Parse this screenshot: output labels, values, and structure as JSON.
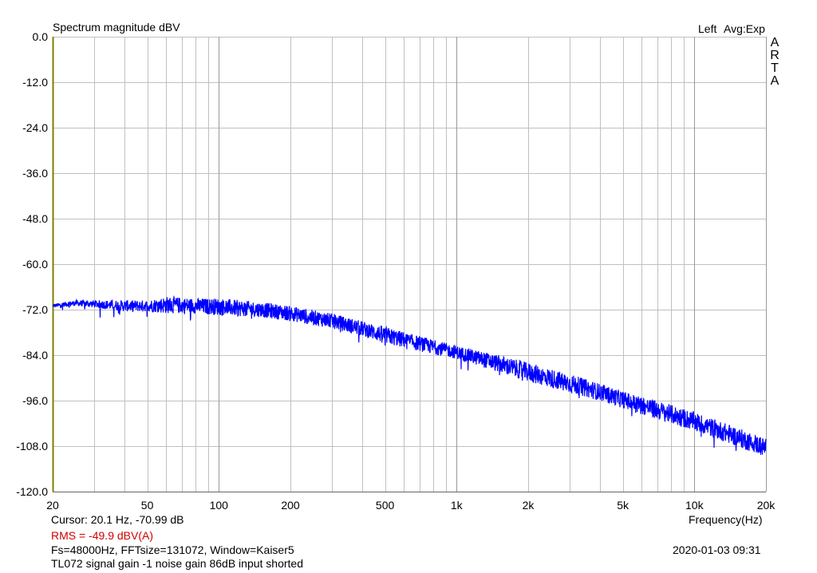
{
  "header": {
    "title": "Spectrum magnitude dBV",
    "channel": "Left",
    "avg": "Avg:Exp"
  },
  "brand_letters": [
    "A",
    "R",
    "T",
    "A"
  ],
  "footer": {
    "cursor": "Cursor:   20.1 Hz, -70.99 dB",
    "rms": "RMS =  -49.9 dBV(A)",
    "fft_info": "Fs=48000Hz, FFTsize=131072, Window=Kaiser5",
    "description": "TL072 signal gain -1 noise gain 86dB input shorted",
    "timestamp": "2020-01-03  09:31"
  },
  "colors": {
    "trace": "#0000ff",
    "grid": "#c0c0c0",
    "axis": "#808000",
    "rms_text": "#d00000"
  },
  "chart_data": {
    "type": "line",
    "title": "Spectrum magnitude dBV",
    "xlabel": "Frequency(Hz)",
    "ylabel": "",
    "x_scale": "log",
    "xlim": [
      20,
      20000
    ],
    "ylim": [
      -120,
      0
    ],
    "grid": true,
    "x_ticks": [
      {
        "value": 20,
        "label": "20"
      },
      {
        "value": 50,
        "label": "50"
      },
      {
        "value": 100,
        "label": "100"
      },
      {
        "value": 200,
        "label": "200"
      },
      {
        "value": 500,
        "label": "500"
      },
      {
        "value": 1000,
        "label": "1k"
      },
      {
        "value": 2000,
        "label": "2k"
      },
      {
        "value": 5000,
        "label": "5k"
      },
      {
        "value": 10000,
        "label": "10k"
      },
      {
        "value": 20000,
        "label": "20k"
      }
    ],
    "y_ticks": [
      {
        "value": 0,
        "label": "0.0"
      },
      {
        "value": -12,
        "label": "-12.0"
      },
      {
        "value": -24,
        "label": "-24.0"
      },
      {
        "value": -36,
        "label": "-36.0"
      },
      {
        "value": -48,
        "label": "-48.0"
      },
      {
        "value": -60,
        "label": "-60.0"
      },
      {
        "value": -72,
        "label": "-72.0"
      },
      {
        "value": -84,
        "label": "-84.0"
      },
      {
        "value": -96,
        "label": "-96.0"
      },
      {
        "value": -108,
        "label": "-108.0"
      },
      {
        "value": -120,
        "label": "-120.0"
      }
    ],
    "series": [
      {
        "x": [
          20,
          25,
          30,
          40,
          50,
          60,
          80,
          100,
          150,
          200,
          300,
          400,
          500,
          700,
          1000,
          1500,
          2000,
          3000,
          4000,
          5000,
          7000,
          10000,
          15000,
          20000
        ],
        "y_low": [
          -71.5,
          -71,
          -71.5,
          -72.5,
          -72.5,
          -73,
          -73,
          -73.5,
          -74,
          -75,
          -77,
          -79,
          -81,
          -83,
          -85,
          -88.5,
          -91,
          -94,
          -96,
          -98,
          -101,
          -104,
          -108,
          -111
        ],
        "y_high": [
          -70.5,
          -69.5,
          -69.5,
          -69.5,
          -69.5,
          -68.5,
          -69,
          -69,
          -70,
          -71,
          -73,
          -75,
          -76.5,
          -79,
          -81.5,
          -84,
          -86,
          -89,
          -91.5,
          -93.5,
          -96,
          -99,
          -103,
          -106
        ]
      }
    ]
  }
}
